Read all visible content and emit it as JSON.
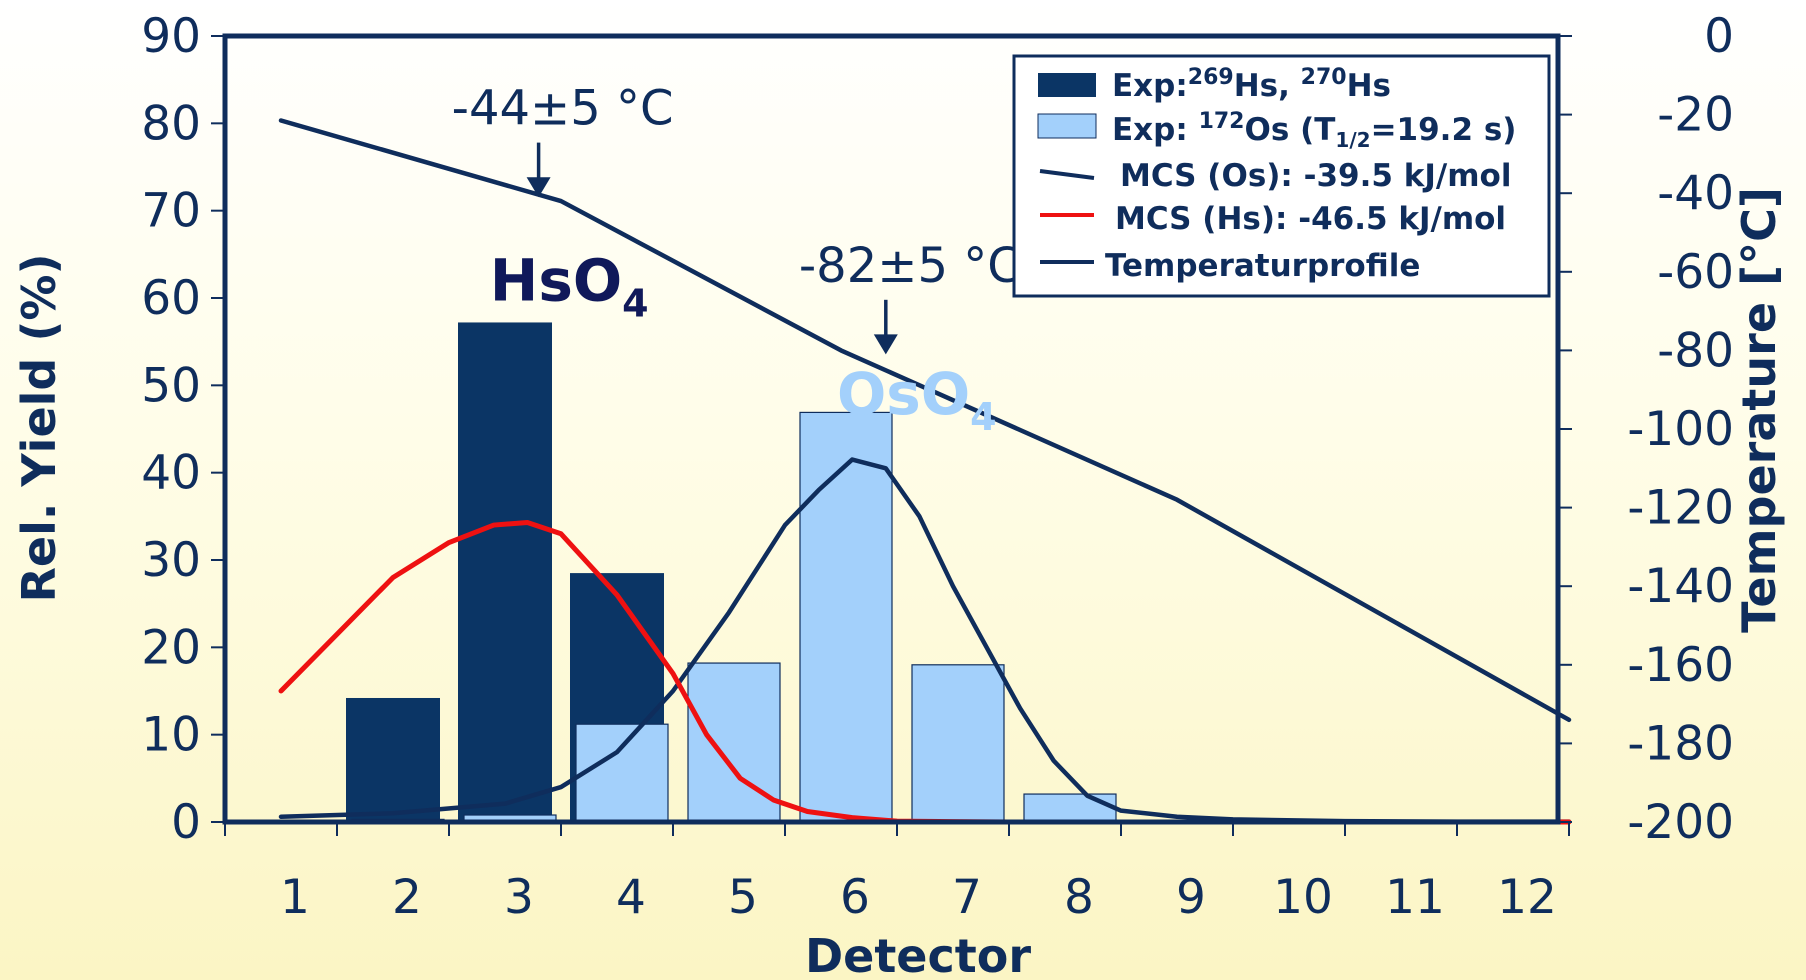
{
  "chart_data": {
    "type": "bar",
    "xlabel": "Detector",
    "ylabel": "Rel. Yield (%)",
    "y2label": "Temperature [°C]",
    "categories": [
      "1",
      "2",
      "3",
      "4",
      "5",
      "6",
      "7",
      "8",
      "9",
      "10",
      "11",
      "12"
    ],
    "ylim": [
      0,
      90
    ],
    "y_ticks": [
      0,
      10,
      20,
      30,
      40,
      50,
      60,
      70,
      80,
      90
    ],
    "y2lim": [
      -200,
      0
    ],
    "y2_ticks": [
      0,
      -20,
      -40,
      -60,
      -80,
      -100,
      -120,
      -140,
      -160,
      -180,
      -200
    ],
    "bar_series": [
      {
        "name": "Exp:269Hs, 270Hs",
        "color": "#0b3565",
        "values": [
          0.2,
          14.2,
          57.2,
          28.5,
          0,
          0,
          0,
          0,
          0,
          0,
          0,
          0
        ]
      },
      {
        "name": "Exp: 172Os (T1/2=19.2 s)",
        "color": "#a3d0fb",
        "values": [
          0,
          0.3,
          0.8,
          11.2,
          18.2,
          46.9,
          18.0,
          3.2,
          0.2,
          0,
          0,
          0
        ]
      }
    ],
    "line_series": [
      {
        "name": "MCS (Os): -39.5 kJ/mol",
        "color": "#0f2d5c",
        "axis": "left",
        "x": [
          0.5,
          1.5,
          2.5,
          3,
          3.5,
          4,
          4.5,
          5,
          5.3,
          5.6,
          5.9,
          6.2,
          6.5,
          6.8,
          7.1,
          7.4,
          7.7,
          8,
          8.5,
          9,
          10,
          11,
          12
        ],
        "y": [
          0.6,
          1.0,
          2.1,
          4,
          8,
          15,
          24,
          34,
          38,
          41.5,
          40.5,
          35,
          27,
          20,
          13,
          7,
          3,
          1.3,
          0.6,
          0.3,
          0.1,
          0.05,
          0.05
        ]
      },
      {
        "name": "MCS (Hs): -46.5 kJ/mol",
        "color": "#ee1111",
        "axis": "left",
        "x": [
          0.5,
          1.5,
          2,
          2.4,
          2.7,
          3,
          3.5,
          4,
          4.3,
          4.6,
          4.9,
          5.2,
          5.6,
          6,
          6.5,
          7,
          8,
          9,
          10,
          11,
          12
        ],
        "y": [
          15,
          28,
          32,
          34,
          34.3,
          33,
          26,
          17,
          10,
          5,
          2.5,
          1.2,
          0.5,
          0.1,
          0.05,
          0,
          0,
          0,
          0,
          0,
          0
        ]
      },
      {
        "name": "Temperaturprofile",
        "color": "#0f2d5c",
        "axis": "right",
        "x": [
          0.5,
          3,
          5.5,
          8.5,
          12
        ],
        "y": [
          -21.5,
          -42,
          -80,
          -118,
          -174
        ]
      }
    ],
    "annotations": [
      {
        "text": "-44±5 °C",
        "x": 2.8,
        "y": 81,
        "arrow_to_y": 72
      },
      {
        "text": "-82±5 °C",
        "x": 5.9,
        "y": 63,
        "arrow_to_y": 54
      }
    ],
    "labels": [
      {
        "base": "HsO",
        "sub": "4",
        "color": "#10195a",
        "x": 2.4,
        "y": 62
      },
      {
        "base": "OsO",
        "sub": "4",
        "color": "#a3d0fb",
        "x": 5.5,
        "y": 49
      }
    ],
    "legend_position": "top-right",
    "grid": false
  }
}
